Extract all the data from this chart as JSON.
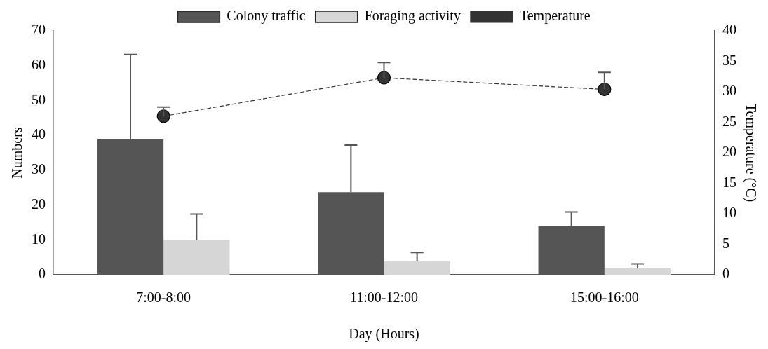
{
  "chart_data": {
    "type": "bar",
    "xlabel": "Day (Hours)",
    "ylabel": "Numbers",
    "y2label": "Temperature (°C)",
    "categories": [
      "7:00-8:00",
      "11:00-12:00",
      "15:00-16:00"
    ],
    "series": [
      {
        "name": "Colony traffic",
        "color": "#555555",
        "values": [
          38.8,
          23.7,
          14.0
        ],
        "errors": [
          [
            38.8,
            63.2
          ],
          [
            23.7,
            37.2
          ],
          [
            14.0,
            18.0
          ]
        ]
      },
      {
        "name": "Foraging activity",
        "color": "#d6d6d6",
        "values": [
          9.9,
          3.8,
          1.8
        ],
        "errors": [
          [
            9.9,
            17.4
          ],
          [
            3.8,
            6.4
          ],
          [
            1.8,
            3.1
          ]
        ]
      },
      {
        "name": "Temperature",
        "type": "line",
        "axis": "y2",
        "color": "#333333",
        "values": [
          26.0,
          32.3,
          30.4
        ],
        "errors": [
          [
            26.0,
            27.5
          ],
          [
            32.3,
            34.8
          ],
          [
            30.4,
            33.2
          ]
        ]
      }
    ],
    "ylim": [
      0,
      70
    ],
    "yticks": [
      0,
      10,
      20,
      30,
      40,
      50,
      60,
      70
    ],
    "y2lim": [
      0,
      40
    ],
    "y2ticks": [
      0,
      5,
      10,
      15,
      20,
      25,
      30,
      35,
      40
    ],
    "grid": false,
    "legend": "top",
    "marker": "circle",
    "line_style": "dashed"
  }
}
